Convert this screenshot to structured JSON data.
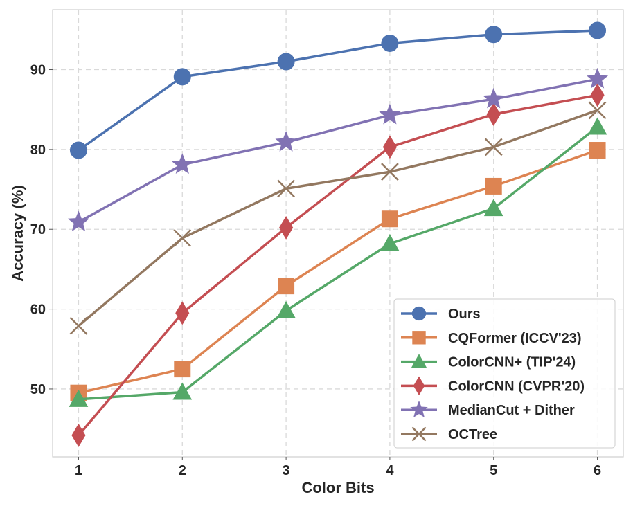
{
  "chart_data": {
    "type": "line",
    "xlabel": "Color Bits",
    "ylabel": "Accuracy (%)",
    "x": [
      1,
      2,
      3,
      4,
      5,
      6
    ],
    "xlim": [
      0.75,
      6.25
    ],
    "ylim": [
      41.5,
      97.5
    ],
    "xticks": [
      "1",
      "2",
      "3",
      "4",
      "5",
      "6"
    ],
    "yticks": [
      50,
      60,
      70,
      80,
      90
    ],
    "grid": true,
    "legend_position": "lower-right",
    "series": [
      {
        "name": "Ours",
        "values": [
          79.9,
          89.1,
          91.0,
          93.3,
          94.4,
          94.9
        ],
        "color": "#4c72b0",
        "marker": "circle"
      },
      {
        "name": "CQFormer (ICCV'23)",
        "values": [
          49.5,
          52.5,
          62.9,
          71.3,
          75.4,
          79.9
        ],
        "color": "#dd8452",
        "marker": "square"
      },
      {
        "name": "ColorCNN+ (TIP'24)",
        "values": [
          48.7,
          49.6,
          59.8,
          68.2,
          72.6,
          82.8
        ],
        "color": "#55a868",
        "marker": "triangle"
      },
      {
        "name": "ColorCNN (CVPR'20)",
        "values": [
          44.2,
          59.5,
          70.2,
          80.3,
          84.4,
          86.8
        ],
        "color": "#c44e52",
        "marker": "diamond"
      },
      {
        "name": "MedianCut + Dither",
        "values": [
          70.9,
          78.1,
          80.9,
          84.3,
          86.3,
          88.8
        ],
        "color": "#8172b3",
        "marker": "star"
      },
      {
        "name": "OCTree",
        "values": [
          57.9,
          68.9,
          75.1,
          77.2,
          80.3,
          84.9
        ],
        "color": "#937860",
        "marker": "x"
      }
    ]
  }
}
